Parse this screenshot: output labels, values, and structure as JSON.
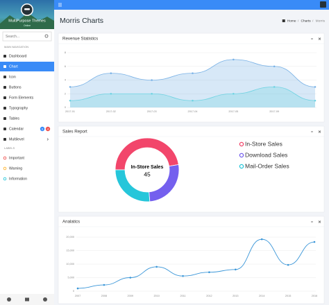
{
  "sidebar": {
    "user": "MultiPurpose Themes",
    "status": "Online",
    "search_placeholder": "Search...",
    "main_heading": "MAIN NAVIGATION",
    "main_items": [
      {
        "label": "Dashboard"
      },
      {
        "label": "Chart",
        "active": true
      },
      {
        "label": "Icon"
      },
      {
        "label": "Buttons"
      },
      {
        "label": "Form Elements"
      },
      {
        "label": "Typography"
      },
      {
        "label": "Tables"
      },
      {
        "label": "Calendar",
        "badges": [
          "6",
          "4"
        ]
      },
      {
        "label": "Multilevel"
      }
    ],
    "labels_heading": "LABELS",
    "label_items": [
      {
        "label": "Important",
        "color": "#ef5350"
      },
      {
        "label": "Warning",
        "color": "#ffb22b"
      },
      {
        "label": "Information",
        "color": "#26c6da"
      }
    ]
  },
  "header": {
    "page_title": "Morris Charts",
    "breadcrumb": [
      "Home",
      "Charts",
      "Morris"
    ]
  },
  "panels": [
    {
      "title": "Revenue Statistics",
      "chart": {
        "type": "area",
        "categories": [
          "2017-01",
          "2017-02",
          "2017-03",
          "2017-04",
          "2017-05",
          "2017-09",
          null
        ],
        "series": [
          {
            "color": "#7ab2e6",
            "values": [
              3,
              5,
              4,
              5,
              7,
              6,
              3
            ]
          },
          {
            "color": "#6fd3e2",
            "values": [
              1,
              2,
              2,
              1,
              2,
              3,
              1
            ]
          }
        ],
        "ylim": [
          0,
          8
        ],
        "yticks": [
          0,
          2,
          4,
          6,
          8
        ],
        "grid": true
      }
    },
    {
      "title": "Sales Report",
      "chart": {
        "type": "donut",
        "categories": [
          "In-Store Sales",
          "Download Sales",
          "Mail-Order Sales"
        ],
        "values": [
          45,
          25,
          25
        ],
        "colors": [
          "#f2466b",
          "#7460ee",
          "#26c6da"
        ]
      }
    },
    {
      "title": "Analatics",
      "chart": {
        "type": "line",
        "x": [
          2007,
          2008,
          2009,
          2010,
          2011,
          2012,
          2013,
          2014,
          2015,
          2016
        ],
        "series": [
          {
            "color": "#3a96d8",
            "values": [
              1000,
              2300,
              5000,
              9000,
              5600,
              7000,
              8000,
              19200,
              9700,
              18200
            ]
          }
        ],
        "xlim": [
          2007,
          2016
        ],
        "xticks": [
          2007,
          2008,
          2009,
          2010,
          2011,
          2012,
          2013,
          2014,
          2015,
          2016
        ],
        "ylim": [
          0,
          20000
        ],
        "yticks": [
          0,
          {
            "value": 5000,
            "label": "5,000"
          },
          {
            "value": 10000,
            "label": "10,000"
          },
          {
            "value": 15000,
            "label": "15,000"
          },
          {
            "value": 20000,
            "label": "20,000"
          }
        ],
        "grid": true
      }
    }
  ]
}
